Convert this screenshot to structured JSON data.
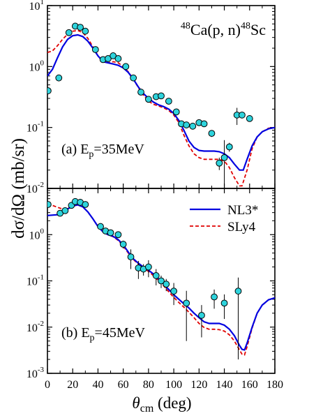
{
  "chart_data": {
    "type": "scatter",
    "ylabel": "dσ/dΩ (mb/sr)",
    "xlabel": "θcm (deg)",
    "xlabel_main": "θ",
    "xlabel_sub": "cm",
    "xlabel_unit": " (deg)",
    "xlim": [
      0,
      180
    ],
    "x_ticks": [
      0,
      20,
      40,
      60,
      80,
      100,
      120,
      140,
      160,
      180
    ],
    "reaction": {
      "mass_a": "48",
      "target": "Ca(p, n)",
      "mass_b": "48",
      "product": "Sc"
    },
    "legend": {
      "placement": "top-right",
      "entries": [
        "NL3*",
        "SLy4"
      ]
    },
    "colors": {
      "NL3*": "#0000e0",
      "SLy4": "#e00000",
      "data": "#2ed3dc"
    },
    "panels": [
      {
        "id": "a",
        "label_prefix": "(a)  E",
        "label_sub": "p",
        "label_suffix": "=35MeV",
        "yscale": "log",
        "ylim_exp": [
          -2,
          1
        ],
        "yticks": [
          {
            "base": "10",
            "exp": "-2"
          },
          {
            "base": "10",
            "exp": "-1"
          },
          {
            "base": "10",
            "exp": "0"
          },
          {
            "base": "10",
            "exp": "1"
          }
        ],
        "experiment": [
          [
            0.5,
            0.4,
            0
          ],
          [
            9,
            0.65,
            0
          ],
          [
            17,
            3.6,
            0
          ],
          [
            22,
            4.6,
            0
          ],
          [
            26,
            4.4,
            0
          ],
          [
            30,
            3.8,
            0
          ],
          [
            38,
            1.9,
            0
          ],
          [
            44,
            1.3,
            0
          ],
          [
            48,
            1.35,
            0
          ],
          [
            52,
            1.5,
            0
          ],
          [
            56,
            1.35,
            0
          ],
          [
            62,
            1.0,
            0
          ],
          [
            68,
            0.65,
            0
          ],
          [
            74,
            0.38,
            0
          ],
          [
            80,
            0.29,
            0
          ],
          [
            86,
            0.32,
            0
          ],
          [
            90,
            0.33,
            0
          ],
          [
            96,
            0.27,
            0
          ],
          [
            102,
            0.18,
            0
          ],
          [
            106,
            0.115,
            0
          ],
          [
            110,
            0.11,
            0
          ],
          [
            115,
            0.105,
            0
          ],
          [
            120,
            0.12,
            0
          ],
          [
            124,
            0.115,
            0
          ],
          [
            130,
            0.08,
            0.01
          ],
          [
            136,
            0.026,
            0.006
          ],
          [
            140,
            0.032,
            0.03
          ],
          [
            144,
            0.048,
            0.008
          ],
          [
            150,
            0.16,
            0.05
          ],
          [
            154,
            0.16,
            0
          ],
          [
            160,
            0.14,
            0
          ]
        ],
        "NL3*": [
          [
            0,
            0.7
          ],
          [
            4,
            0.9
          ],
          [
            8,
            1.4
          ],
          [
            12,
            2.1
          ],
          [
            16,
            2.8
          ],
          [
            20,
            3.2
          ],
          [
            24,
            3.3
          ],
          [
            28,
            3.1
          ],
          [
            32,
            2.6
          ],
          [
            36,
            2.0
          ],
          [
            40,
            1.5
          ],
          [
            44,
            1.2
          ],
          [
            48,
            1.15
          ],
          [
            52,
            1.1
          ],
          [
            56,
            1.05
          ],
          [
            60,
            0.95
          ],
          [
            64,
            0.8
          ],
          [
            68,
            0.62
          ],
          [
            72,
            0.46
          ],
          [
            76,
            0.36
          ],
          [
            80,
            0.3
          ],
          [
            84,
            0.26
          ],
          [
            88,
            0.235
          ],
          [
            92,
            0.22
          ],
          [
            96,
            0.2
          ],
          [
            100,
            0.17
          ],
          [
            104,
            0.13
          ],
          [
            108,
            0.09
          ],
          [
            112,
            0.06
          ],
          [
            116,
            0.047
          ],
          [
            120,
            0.042
          ],
          [
            124,
            0.041
          ],
          [
            128,
            0.041
          ],
          [
            132,
            0.041
          ],
          [
            136,
            0.04
          ],
          [
            140,
            0.037
          ],
          [
            144,
            0.032
          ],
          [
            148,
            0.025
          ],
          [
            152,
            0.02
          ],
          [
            155,
            0.02
          ],
          [
            158,
            0.03
          ],
          [
            162,
            0.05
          ],
          [
            166,
            0.07
          ],
          [
            170,
            0.085
          ],
          [
            175,
            0.095
          ],
          [
            180,
            0.1
          ]
        ],
        "SLy4": [
          [
            0,
            1.7
          ],
          [
            4,
            1.8
          ],
          [
            8,
            2.2
          ],
          [
            12,
            2.8
          ],
          [
            16,
            3.4
          ],
          [
            20,
            3.8
          ],
          [
            24,
            3.9
          ],
          [
            28,
            3.6
          ],
          [
            32,
            2.9
          ],
          [
            36,
            2.1
          ],
          [
            40,
            1.5
          ],
          [
            44,
            1.2
          ],
          [
            48,
            1.15
          ],
          [
            52,
            1.2
          ],
          [
            56,
            1.15
          ],
          [
            60,
            1.0
          ],
          [
            64,
            0.82
          ],
          [
            68,
            0.62
          ],
          [
            72,
            0.45
          ],
          [
            76,
            0.34
          ],
          [
            80,
            0.27
          ],
          [
            84,
            0.24
          ],
          [
            88,
            0.225
          ],
          [
            92,
            0.21
          ],
          [
            96,
            0.19
          ],
          [
            100,
            0.16
          ],
          [
            104,
            0.12
          ],
          [
            108,
            0.075
          ],
          [
            112,
            0.05
          ],
          [
            116,
            0.037
          ],
          [
            120,
            0.032
          ],
          [
            124,
            0.03
          ],
          [
            128,
            0.03
          ],
          [
            132,
            0.03
          ],
          [
            136,
            0.03
          ],
          [
            140,
            0.028
          ],
          [
            144,
            0.022
          ],
          [
            148,
            0.015
          ],
          [
            152,
            0.011
          ],
          [
            154,
            0.011
          ],
          [
            158,
            0.02
          ],
          [
            162,
            0.045
          ],
          [
            166,
            0.07
          ],
          [
            170,
            0.085
          ],
          [
            175,
            0.097
          ],
          [
            180,
            0.1
          ]
        ]
      },
      {
        "id": "b",
        "label_prefix": "(b)  E",
        "label_sub": "p",
        "label_suffix": "=45MeV",
        "yscale": "log",
        "ylim_exp": [
          -3,
          1
        ],
        "yticks": [
          {
            "base": "10",
            "exp": "-3"
          },
          {
            "base": "10",
            "exp": "-2"
          },
          {
            "base": "10",
            "exp": "-1"
          },
          {
            "base": "10",
            "exp": "0"
          }
        ],
        "experiment": [
          [
            0.5,
            4.5,
            0
          ],
          [
            10,
            2.9,
            0
          ],
          [
            14,
            3.3,
            0
          ],
          [
            19,
            4.3,
            0
          ],
          [
            22,
            5.2,
            0
          ],
          [
            26,
            5.0,
            0
          ],
          [
            30,
            4.5,
            0
          ],
          [
            42,
            1.5,
            0
          ],
          [
            46,
            1.2,
            0
          ],
          [
            50,
            1.1,
            0
          ],
          [
            56,
            1.0,
            0
          ],
          [
            60,
            0.62,
            0.12
          ],
          [
            66,
            0.33,
            0.15
          ],
          [
            72,
            0.19,
            0.08
          ],
          [
            76,
            0.18,
            0.05
          ],
          [
            80,
            0.2,
            0.08
          ],
          [
            86,
            0.13,
            0.05
          ],
          [
            90,
            0.1,
            0.03
          ],
          [
            94,
            0.085,
            0.025
          ],
          [
            100,
            0.06,
            0.03
          ],
          [
            110,
            0.033,
            0.028
          ],
          [
            122,
            0.018,
            0.012
          ],
          [
            132,
            0.045,
            0.02
          ],
          [
            140,
            0.033,
            0.018
          ],
          [
            151,
            0.06,
            0.058
          ]
        ],
        "NL3*": [
          [
            0,
            2.6
          ],
          [
            8,
            2.7
          ],
          [
            12,
            3.0
          ],
          [
            16,
            3.6
          ],
          [
            20,
            4.2
          ],
          [
            24,
            4.4
          ],
          [
            28,
            4.0
          ],
          [
            32,
            3.1
          ],
          [
            36,
            2.2
          ],
          [
            40,
            1.5
          ],
          [
            44,
            1.15
          ],
          [
            48,
            1.0
          ],
          [
            52,
            0.92
          ],
          [
            56,
            0.78
          ],
          [
            60,
            0.6
          ],
          [
            64,
            0.42
          ],
          [
            68,
            0.3
          ],
          [
            72,
            0.24
          ],
          [
            76,
            0.2
          ],
          [
            80,
            0.17
          ],
          [
            84,
            0.14
          ],
          [
            88,
            0.11
          ],
          [
            92,
            0.085
          ],
          [
            96,
            0.065
          ],
          [
            100,
            0.05
          ],
          [
            104,
            0.04
          ],
          [
            108,
            0.032
          ],
          [
            112,
            0.026
          ],
          [
            116,
            0.02
          ],
          [
            120,
            0.016
          ],
          [
            124,
            0.013
          ],
          [
            128,
            0.012
          ],
          [
            132,
            0.012
          ],
          [
            136,
            0.012
          ],
          [
            140,
            0.011
          ],
          [
            144,
            0.009
          ],
          [
            148,
            0.0065
          ],
          [
            152,
            0.004
          ],
          [
            154,
            0.0033
          ],
          [
            156,
            0.0032
          ],
          [
            158,
            0.0045
          ],
          [
            162,
            0.01
          ],
          [
            166,
            0.02
          ],
          [
            170,
            0.03
          ],
          [
            175,
            0.039
          ],
          [
            180,
            0.043
          ]
        ],
        "SLy4": [
          [
            0,
            4.6
          ],
          [
            4,
            4.3
          ],
          [
            8,
            3.9
          ],
          [
            12,
            3.6
          ],
          [
            16,
            3.7
          ],
          [
            20,
            4.1
          ],
          [
            24,
            4.4
          ],
          [
            28,
            4.0
          ],
          [
            32,
            3.1
          ],
          [
            36,
            2.2
          ],
          [
            40,
            1.5
          ],
          [
            44,
            1.15
          ],
          [
            48,
            1.0
          ],
          [
            52,
            0.9
          ],
          [
            56,
            0.75
          ],
          [
            60,
            0.56
          ],
          [
            64,
            0.4
          ],
          [
            68,
            0.29
          ],
          [
            72,
            0.23
          ],
          [
            76,
            0.19
          ],
          [
            80,
            0.16
          ],
          [
            84,
            0.13
          ],
          [
            88,
            0.1
          ],
          [
            92,
            0.078
          ],
          [
            96,
            0.058
          ],
          [
            100,
            0.044
          ],
          [
            104,
            0.034
          ],
          [
            108,
            0.027
          ],
          [
            112,
            0.021
          ],
          [
            116,
            0.016
          ],
          [
            120,
            0.012
          ],
          [
            124,
            0.0098
          ],
          [
            128,
            0.009
          ],
          [
            132,
            0.009
          ],
          [
            136,
            0.0088
          ],
          [
            140,
            0.0082
          ],
          [
            144,
            0.0068
          ],
          [
            148,
            0.005
          ],
          [
            152,
            0.0032
          ],
          [
            154,
            0.0026
          ],
          [
            156,
            0.0025
          ],
          [
            158,
            0.0038
          ],
          [
            162,
            0.0095
          ],
          [
            166,
            0.02
          ],
          [
            170,
            0.03
          ],
          [
            175,
            0.039
          ],
          [
            180,
            0.043
          ]
        ]
      }
    ]
  }
}
